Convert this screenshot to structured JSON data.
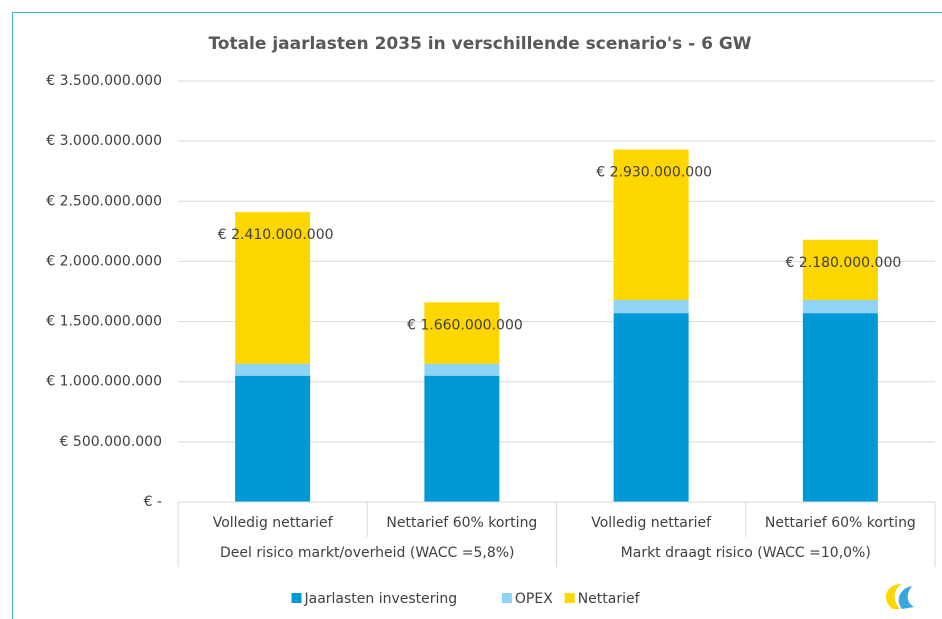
{
  "chart_data": {
    "type": "stacked_bar",
    "title": "Totale jaarlasten 2035 in verschillende scenario's - 6 GW",
    "categories": [
      "Volledig nettarief",
      "Nettarief 60% korting",
      "Volledig nettarief",
      "Nettarief 60% korting"
    ],
    "group_labels": [
      "Deel risico markt/overheid (WACC =5,8%)",
      "Markt draagt risico (WACC =10,0%)"
    ],
    "series": [
      {
        "name": "Jaarlasten investering",
        "color": "#0099d6",
        "values": [
          1050000000,
          1050000000,
          1570000000,
          1570000000
        ]
      },
      {
        "name": "OPEX",
        "color": "#8fd3f5",
        "values": [
          100000000,
          100000000,
          110000000,
          110000000
        ]
      },
      {
        "name": "Nettarief",
        "color": "#ffd700",
        "values": [
          1260000000,
          510000000,
          1250000000,
          500000000
        ]
      }
    ],
    "totals": [
      2410000000,
      1660000000,
      2930000000,
      2180000000
    ],
    "total_labels": [
      "€ 2.410.000.000",
      "€ 1.660.000.000",
      "€ 2.930.000.000",
      "€ 2.180.000.000"
    ],
    "ylim": [
      0,
      3500000000
    ],
    "yticks": [
      {
        "value": 0,
        "label": "€ -"
      },
      {
        "value": 500000000,
        "label": "€ 500.000.000"
      },
      {
        "value": 1000000000,
        "label": "€ 1.000.000.000"
      },
      {
        "value": 1500000000,
        "label": "€ 1.500.000.000"
      },
      {
        "value": 2000000000,
        "label": "€ 2.000.000.000"
      },
      {
        "value": 2500000000,
        "label": "€ 2.500.000.000"
      },
      {
        "value": 3000000000,
        "label": "€ 3.000.000.000"
      },
      {
        "value": 3500000000,
        "label": "€ 3.500.000.000"
      }
    ],
    "grid": true,
    "legend": "bottom"
  }
}
